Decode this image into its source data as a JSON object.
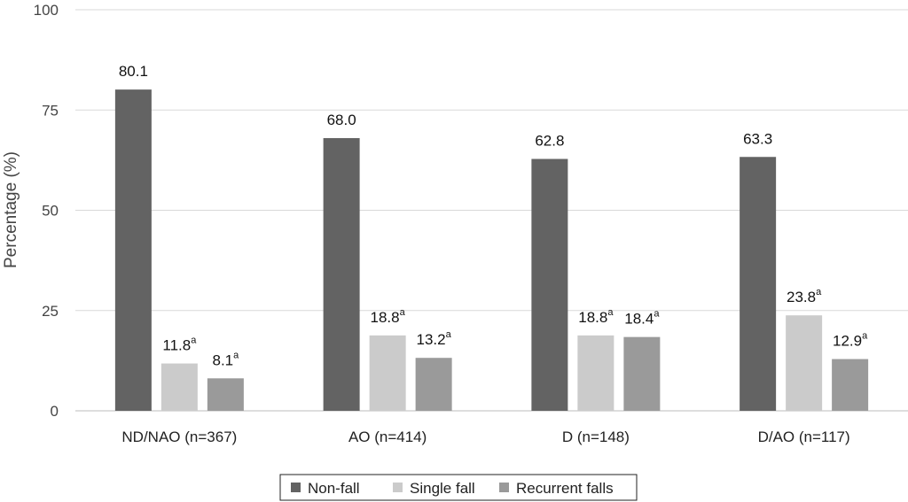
{
  "chart_data": {
    "type": "bar",
    "title": "",
    "xlabel": "",
    "ylabel": "Percentage (%)",
    "ylim": [
      0,
      100
    ],
    "yticks": [
      0,
      25,
      50,
      75,
      100
    ],
    "grid": true,
    "legend_position": "bottom",
    "categories": [
      "ND/NAO (n=367)",
      "AO (n=414)",
      "D (n=148)",
      "D/AO (n=117)"
    ],
    "series": [
      {
        "name": "Non-fall",
        "color": "#636363",
        "values": [
          80.1,
          68.0,
          62.8,
          63.3
        ],
        "labels": [
          "80.1",
          "68.0",
          "62.8",
          "63.3"
        ],
        "superscripts": [
          "",
          "",
          "",
          ""
        ]
      },
      {
        "name": "Single fall",
        "color": "#cbcbcb",
        "values": [
          11.8,
          18.8,
          18.8,
          23.8
        ],
        "labels": [
          "11.8",
          "18.8",
          "18.8",
          "23.8"
        ],
        "superscripts": [
          "a",
          "a",
          "a",
          "a"
        ]
      },
      {
        "name": "Recurrent falls",
        "color": "#9a9a9a",
        "values": [
          8.1,
          13.2,
          18.4,
          12.9
        ],
        "labels": [
          "8.1",
          "13.2",
          "18.4",
          "12.9"
        ],
        "superscripts": [
          "a",
          "a",
          "a",
          "a"
        ]
      }
    ]
  }
}
